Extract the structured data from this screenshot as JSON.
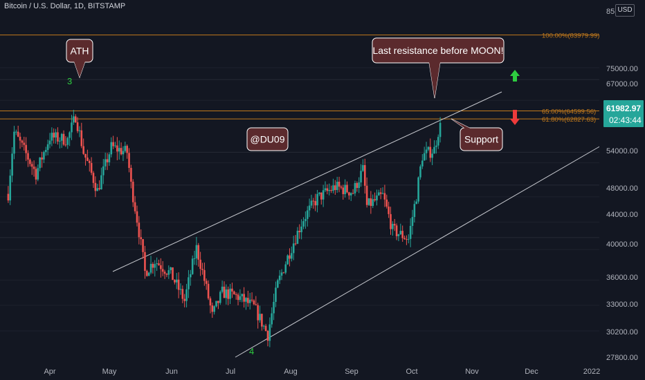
{
  "header": {
    "symbol_title": "Bitcoin / U.S. Dollar, 1D, BITSTAMP",
    "currency_button": "USD"
  },
  "price_axis": {
    "labels": [
      "85",
      "75000.00",
      "67000.00",
      "61982.97",
      "02:43:44",
      "54000.00",
      "48000.00",
      "44000.00",
      "40000.00",
      "36000.00",
      "33000.00",
      "30200.00",
      "27800.00"
    ],
    "current_price": "61982.97",
    "countdown": "02:43:44",
    "current_price_color": "#26a69a"
  },
  "date_axis": {
    "labels": [
      "Apr",
      "May",
      "Jun",
      "Jul",
      "Aug",
      "Sep",
      "Oct",
      "Nov",
      "Dec",
      "2022"
    ]
  },
  "fib_levels": [
    {
      "label": "100.00%(83979.99)",
      "price": 83979.99,
      "emphasis": true
    },
    {
      "label": "65.00%(64599.56)",
      "price": 64599.56,
      "emphasis": true
    },
    {
      "label": "61.80%(62827.63)",
      "price": 62827.63,
      "emphasis": true
    }
  ],
  "annotations": {
    "ath": "ATH",
    "moon": "Last resistance before MOON!",
    "support": "Support",
    "author": "@DU09",
    "wave_3": "3",
    "wave_4": "4"
  },
  "colors": {
    "background": "#131722",
    "up_candle": "#26a69a",
    "down_candle": "#ef5350",
    "fib_line": "#c27a1c",
    "trendline": "#c8cad0",
    "callout_bg": "#5b2a2d",
    "arrow_up": "#2ecc40",
    "arrow_down": "#ef3b3b"
  },
  "chart_data": {
    "type": "candlestick",
    "title": "Bitcoin / U.S. Dollar, 1D, BITSTAMP",
    "xlabel": "",
    "ylabel": "",
    "x_range": [
      "2021-03-11",
      "2022-01-05"
    ],
    "ylim": [
      27000,
      86000
    ],
    "y_scale": "log",
    "grid": true,
    "waypoints": [
      [
        "2021-03-11",
        48500
      ],
      [
        "2021-03-14",
        60000
      ],
      [
        "2021-03-25",
        52000
      ],
      [
        "2021-04-01",
        59000
      ],
      [
        "2021-04-10",
        58500
      ],
      [
        "2021-04-14",
        63500
      ],
      [
        "2021-04-18",
        56000
      ],
      [
        "2021-04-25",
        49000
      ],
      [
        "2021-05-02",
        57000
      ],
      [
        "2021-05-10",
        56000
      ],
      [
        "2021-05-12",
        50000
      ],
      [
        "2021-05-19",
        37000
      ],
      [
        "2021-05-24",
        38500
      ],
      [
        "2021-06-01",
        36800
      ],
      [
        "2021-06-08",
        33500
      ],
      [
        "2021-06-14",
        40200
      ],
      [
        "2021-06-22",
        31800
      ],
      [
        "2021-06-27",
        34500
      ],
      [
        "2021-07-05",
        34000
      ],
      [
        "2021-07-13",
        32800
      ],
      [
        "2021-07-20",
        29800
      ],
      [
        "2021-07-25",
        35500
      ],
      [
        "2021-08-07",
        44500
      ],
      [
        "2021-08-14",
        47800
      ],
      [
        "2021-08-23",
        49700
      ],
      [
        "2021-09-01",
        48800
      ],
      [
        "2021-09-06",
        52700
      ],
      [
        "2021-09-08",
        46500
      ],
      [
        "2021-09-16",
        48200
      ],
      [
        "2021-09-21",
        42800
      ],
      [
        "2021-09-29",
        41500
      ],
      [
        "2021-10-03",
        48200
      ],
      [
        "2021-10-06",
        55300
      ],
      [
        "2021-10-12",
        56500
      ],
      [
        "2021-10-15",
        61982.97
      ]
    ]
  }
}
